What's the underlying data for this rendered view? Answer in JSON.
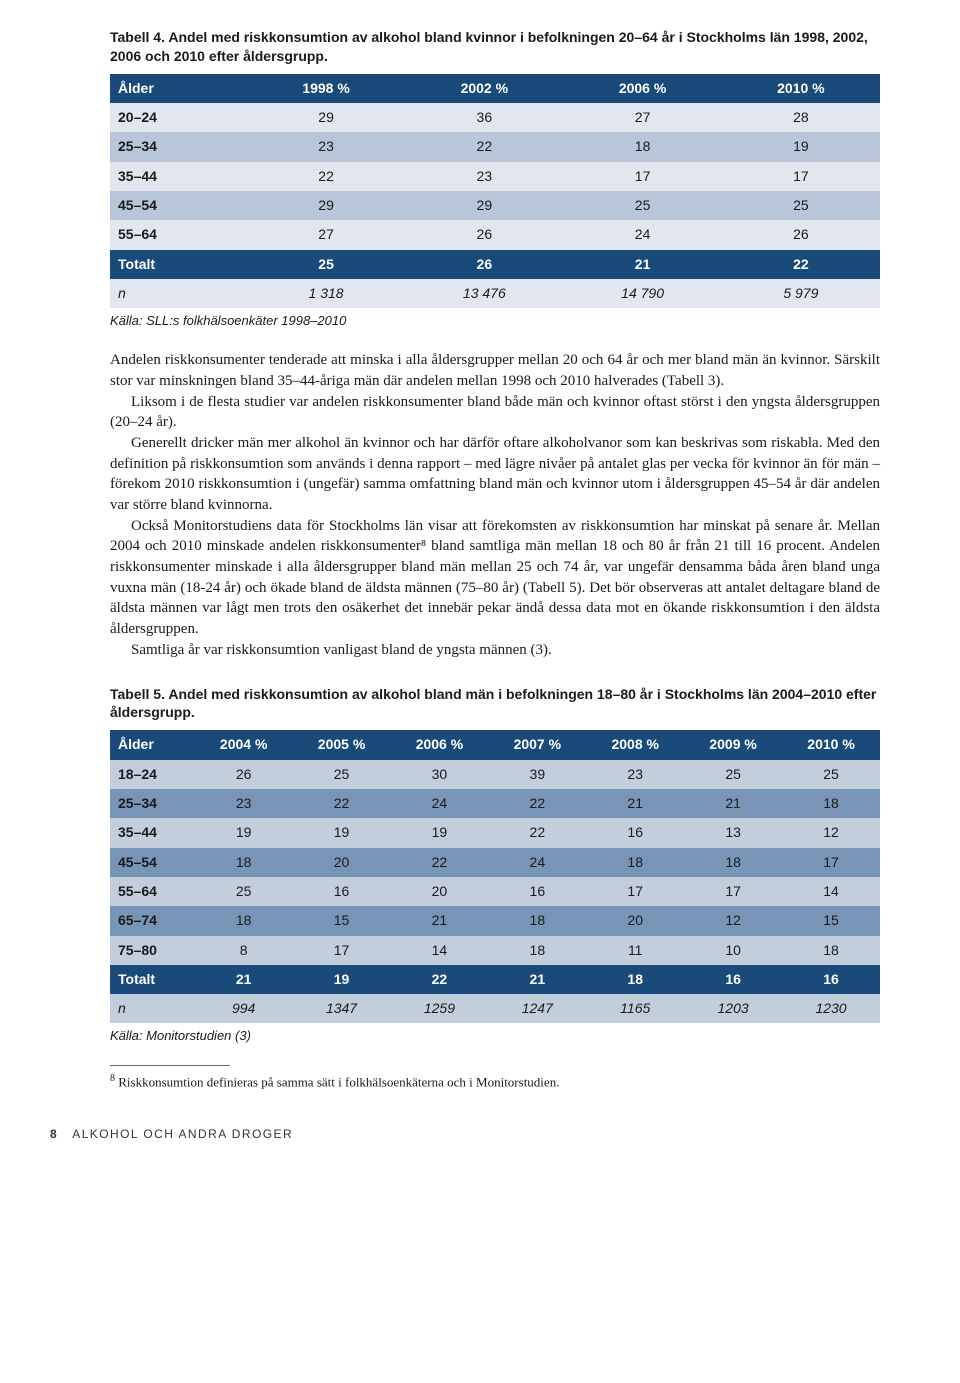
{
  "table4": {
    "caption": "Tabell 4. Andel med riskkonsumtion av alkohol bland kvinnor i befolkningen 20–64 år i Stockholms län 1998, 2002, 2006 och 2010 efter åldersgrupp.",
    "header_bg": "#1a4a7a",
    "row_alt_bg": "#b9c5d8",
    "row_bg": "#e2e6ee",
    "columns": [
      "Ålder",
      "1998 %",
      "2002 %",
      "2006 %",
      "2010 %"
    ],
    "rows": [
      [
        "20–24",
        "29",
        "36",
        "27",
        "28"
      ],
      [
        "25–34",
        "23",
        "22",
        "18",
        "19"
      ],
      [
        "35–44",
        "22",
        "23",
        "17",
        "17"
      ],
      [
        "45–54",
        "29",
        "29",
        "25",
        "25"
      ],
      [
        "55–64",
        "27",
        "26",
        "24",
        "26"
      ],
      [
        "Totalt",
        "25",
        "26",
        "21",
        "22"
      ],
      [
        "n",
        "1 318",
        "13 476",
        "14 790",
        "5 979"
      ]
    ],
    "row_is_header_like": [
      false,
      false,
      false,
      false,
      false,
      true,
      false
    ],
    "row_all_italic": [
      false,
      false,
      false,
      false,
      false,
      false,
      true
    ],
    "source": "Källa: SLL:s folkhälsoenkäter 1998–2010"
  },
  "paragraphs": [
    "Andelen riskkonsumenter tenderade att minska i alla åldersgrupper mellan 20 och 64 år och mer bland män än kvinnor. Särskilt stor var minskningen bland 35–44-åriga män där andelen mellan 1998 och 2010 halverades (Tabell 3).",
    "Liksom i de flesta studier var andelen riskkonsumenter bland både män och kvinnor oftast störst i den yngsta åldersgruppen (20–24 år).",
    "Generellt dricker män mer alkohol än kvinnor och har därför oftare alkoholvanor som kan beskrivas som riskabla. Med den definition på riskkonsumtion som används i denna rapport – med lägre nivåer på antalet glas per vecka för kvinnor än för män – förekom 2010 riskkonsumtion i (ungefär) samma omfattning bland män och kvinnor utom i åldersgruppen 45–54 år där andelen var större bland kvinnorna.",
    "Också Monitorstudiens data för Stockholms län visar att förekomsten av riskkonsumtion har minskat på senare år. Mellan 2004 och 2010 minskade andelen riskkonsumenter⁸ bland samtliga män mellan 18 och 80 år från 21 till 16 procent. Andelen riskkonsumenter minskade i alla åldersgrupper bland män mellan 25 och 74 år, var ungefär densamma båda åren bland unga vuxna män (18-24 år) och ökade bland de äldsta männen (75–80 år) (Tabell 5). Det bör observeras att antalet deltagare bland de äldsta männen var lågt men trots den osäkerhet det innebär pekar ändå dessa data mot en ökande riskkonsumtion i den äldsta åldersgruppen.",
    "Samtliga år var riskkonsumtion vanligast bland de yngsta männen (3)."
  ],
  "table5": {
    "caption": "Tabell 5. Andel med riskkonsumtion av alkohol bland män i befolkningen 18–80 år i Stockholms län 2004–2010 efter åldersgrupp.",
    "header_bg": "#1a4a7a",
    "row_alt_bg": "#7895b8",
    "row_bg": "#c3cedd",
    "columns": [
      "Ålder",
      "2004 %",
      "2005 %",
      "2006 %",
      "2007 %",
      "2008 %",
      "2009 %",
      "2010 %"
    ],
    "rows": [
      [
        "18–24",
        "26",
        "25",
        "30",
        "39",
        "23",
        "25",
        "25"
      ],
      [
        "25–34",
        "23",
        "22",
        "24",
        "22",
        "21",
        "21",
        "18"
      ],
      [
        "35–44",
        "19",
        "19",
        "19",
        "22",
        "16",
        "13",
        "12"
      ],
      [
        "45–54",
        "18",
        "20",
        "22",
        "24",
        "18",
        "18",
        "17"
      ],
      [
        "55–64",
        "25",
        "16",
        "20",
        "16",
        "17",
        "17",
        "14"
      ],
      [
        "65–74",
        "18",
        "15",
        "21",
        "18",
        "20",
        "12",
        "15"
      ],
      [
        "75–80",
        "8",
        "17",
        "14",
        "18",
        "11",
        "10",
        "18"
      ],
      [
        "Totalt",
        "21",
        "19",
        "22",
        "21",
        "18",
        "16",
        "16"
      ],
      [
        "n",
        "994",
        "1347",
        "1259",
        "1247",
        "1165",
        "1203",
        "1230"
      ]
    ],
    "row_is_header_like": [
      false,
      false,
      false,
      false,
      false,
      false,
      false,
      true,
      false
    ],
    "row_all_italic": [
      false,
      false,
      false,
      false,
      false,
      false,
      false,
      false,
      true
    ],
    "source": "Källa: Monitorstudien (3)"
  },
  "footnote": {
    "marker": "8",
    "text": "Riskkonsumtion definieras på samma sätt i folkhälsoenkäterna och i Monitorstudien."
  },
  "footer": {
    "page": "8",
    "text": "ALKOHOL OCH ANDRA DROGER"
  }
}
